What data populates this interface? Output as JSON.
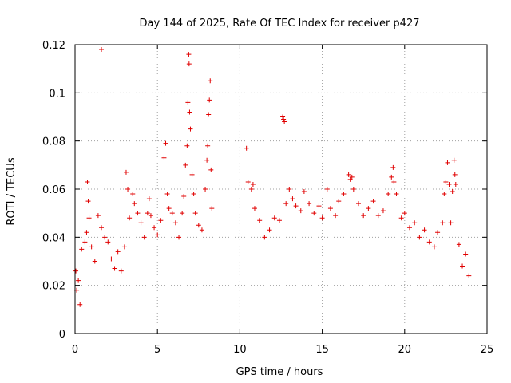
{
  "chart_data": {
    "type": "scatter",
    "title": "Day 144 of 2025, Rate Of TEC Index for receiver p427",
    "xlabel": "GPS time / hours",
    "ylabel": "ROTI / TECUs",
    "xlim": [
      0,
      25
    ],
    "ylim": [
      0,
      0.12
    ],
    "xticks": [
      "0",
      "5",
      "10",
      "15",
      "20",
      "25"
    ],
    "yticks": [
      "0",
      "0.02",
      "0.04",
      "0.06",
      "0.08",
      "0.1",
      "0.12"
    ],
    "grid": true,
    "marker": "plus",
    "color": "#e00000",
    "series": [
      {
        "points": [
          [
            0.05,
            0.026
          ],
          [
            0.1,
            0.018
          ],
          [
            0.2,
            0.022
          ],
          [
            0.3,
            0.012
          ],
          [
            0.4,
            0.035
          ],
          [
            0.6,
            0.038
          ],
          [
            0.7,
            0.042
          ],
          [
            0.75,
            0.063
          ],
          [
            0.8,
            0.055
          ],
          [
            0.85,
            0.048
          ],
          [
            1.0,
            0.036
          ],
          [
            1.2,
            0.03
          ],
          [
            1.4,
            0.049
          ],
          [
            1.6,
            0.118
          ],
          [
            1.6,
            0.044
          ],
          [
            1.8,
            0.04
          ],
          [
            2.0,
            0.038
          ],
          [
            2.2,
            0.031
          ],
          [
            2.4,
            0.027
          ],
          [
            2.6,
            0.034
          ],
          [
            2.8,
            0.026
          ],
          [
            3.0,
            0.036
          ],
          [
            3.1,
            0.067
          ],
          [
            3.2,
            0.06
          ],
          [
            3.3,
            0.048
          ],
          [
            3.5,
            0.058
          ],
          [
            3.6,
            0.054
          ],
          [
            3.8,
            0.05
          ],
          [
            4.0,
            0.046
          ],
          [
            4.2,
            0.04
          ],
          [
            4.4,
            0.05
          ],
          [
            4.5,
            0.056
          ],
          [
            4.6,
            0.049
          ],
          [
            4.8,
            0.044
          ],
          [
            5.0,
            0.041
          ],
          [
            5.2,
            0.047
          ],
          [
            5.4,
            0.073
          ],
          [
            5.5,
            0.079
          ],
          [
            5.6,
            0.058
          ],
          [
            5.7,
            0.052
          ],
          [
            5.9,
            0.05
          ],
          [
            6.1,
            0.046
          ],
          [
            6.3,
            0.04
          ],
          [
            6.5,
            0.05
          ],
          [
            6.6,
            0.057
          ],
          [
            6.7,
            0.07
          ],
          [
            6.8,
            0.078
          ],
          [
            6.85,
            0.096
          ],
          [
            6.9,
            0.116
          ],
          [
            6.92,
            0.112
          ],
          [
            6.95,
            0.092
          ],
          [
            7.0,
            0.085
          ],
          [
            7.1,
            0.066
          ],
          [
            7.2,
            0.058
          ],
          [
            7.3,
            0.05
          ],
          [
            7.5,
            0.045
          ],
          [
            7.7,
            0.043
          ],
          [
            7.9,
            0.06
          ],
          [
            8.0,
            0.072
          ],
          [
            8.05,
            0.078
          ],
          [
            8.1,
            0.091
          ],
          [
            8.15,
            0.097
          ],
          [
            8.2,
            0.105
          ],
          [
            8.25,
            0.068
          ],
          [
            8.3,
            0.052
          ],
          [
            10.4,
            0.077
          ],
          [
            10.5,
            0.063
          ],
          [
            10.7,
            0.06
          ],
          [
            10.8,
            0.062
          ],
          [
            10.9,
            0.052
          ],
          [
            11.2,
            0.047
          ],
          [
            11.5,
            0.04
          ],
          [
            11.8,
            0.043
          ],
          [
            12.1,
            0.048
          ],
          [
            12.4,
            0.047
          ],
          [
            12.6,
            0.09
          ],
          [
            12.65,
            0.089
          ],
          [
            12.7,
            0.088
          ],
          [
            12.8,
            0.054
          ],
          [
            13.0,
            0.06
          ],
          [
            13.2,
            0.056
          ],
          [
            13.4,
            0.053
          ],
          [
            13.7,
            0.051
          ],
          [
            13.9,
            0.059
          ],
          [
            14.2,
            0.054
          ],
          [
            14.5,
            0.05
          ],
          [
            14.8,
            0.053
          ],
          [
            15.0,
            0.048
          ],
          [
            15.3,
            0.06
          ],
          [
            15.5,
            0.052
          ],
          [
            15.8,
            0.049
          ],
          [
            16.0,
            0.055
          ],
          [
            16.3,
            0.058
          ],
          [
            16.6,
            0.066
          ],
          [
            16.7,
            0.064
          ],
          [
            16.8,
            0.065
          ],
          [
            16.9,
            0.06
          ],
          [
            17.2,
            0.054
          ],
          [
            17.5,
            0.049
          ],
          [
            17.8,
            0.052
          ],
          [
            18.1,
            0.055
          ],
          [
            18.4,
            0.049
          ],
          [
            18.7,
            0.051
          ],
          [
            19.0,
            0.058
          ],
          [
            19.2,
            0.065
          ],
          [
            19.3,
            0.069
          ],
          [
            19.35,
            0.063
          ],
          [
            19.5,
            0.058
          ],
          [
            19.8,
            0.048
          ],
          [
            20.0,
            0.05
          ],
          [
            20.3,
            0.044
          ],
          [
            20.6,
            0.046
          ],
          [
            20.9,
            0.04
          ],
          [
            21.2,
            0.043
          ],
          [
            21.5,
            0.038
          ],
          [
            21.8,
            0.036
          ],
          [
            22.0,
            0.042
          ],
          [
            22.3,
            0.046
          ],
          [
            22.4,
            0.058
          ],
          [
            22.5,
            0.063
          ],
          [
            22.6,
            0.071
          ],
          [
            22.7,
            0.062
          ],
          [
            22.8,
            0.046
          ],
          [
            22.9,
            0.059
          ],
          [
            23.0,
            0.072
          ],
          [
            23.05,
            0.066
          ],
          [
            23.1,
            0.062
          ],
          [
            23.3,
            0.037
          ],
          [
            23.5,
            0.028
          ],
          [
            23.7,
            0.033
          ],
          [
            23.9,
            0.024
          ]
        ]
      }
    ]
  }
}
